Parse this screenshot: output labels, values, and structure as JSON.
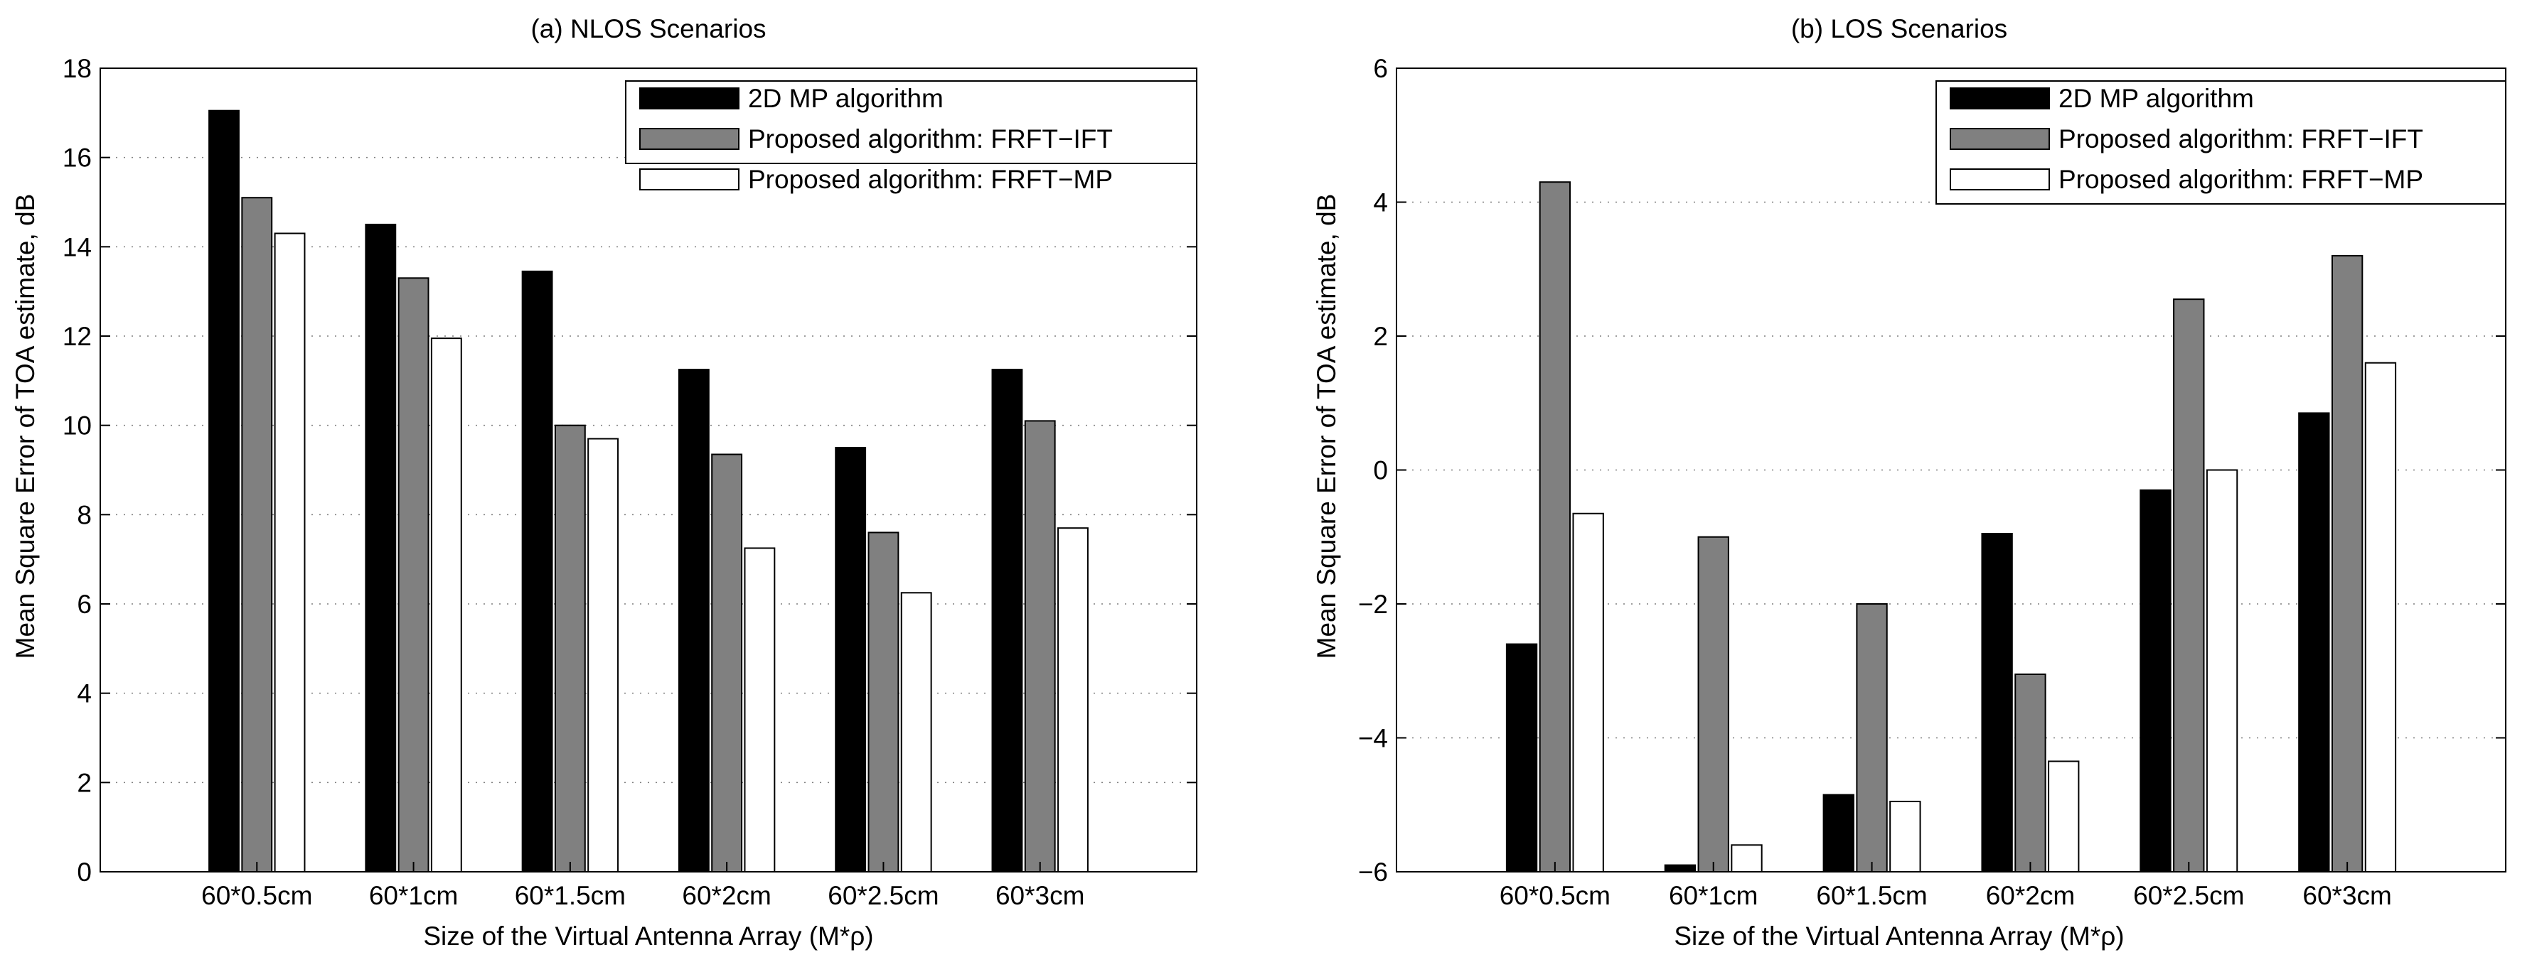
{
  "figure": {
    "background": "#ffffff",
    "colors": {
      "2d_mp": "#000000",
      "frft_ift": "#808080",
      "frft_mp": "#ffffff",
      "grid": "#7f7f7f",
      "axis": "#000000"
    }
  },
  "chart_data": [
    {
      "type": "bar",
      "title": "(a) NLOS Scenarios",
      "xlabel": "Size of the Virtual Antenna Array (M*ρ)",
      "ylabel": "Mean Square Error of TOA estimate, dB",
      "categories": [
        "60*0.5cm",
        "60*1cm",
        "60*1.5cm",
        "60*2cm",
        "60*2.5cm",
        "60*3cm"
      ],
      "ylim": [
        0,
        18
      ],
      "yticks": [
        0,
        2,
        4,
        6,
        8,
        10,
        12,
        14,
        16,
        18
      ],
      "grid": "horizontal dotted",
      "legend_position": "top-right",
      "series": [
        {
          "name": "2D MP algorithm",
          "color": "#000000",
          "values": [
            17.05,
            14.5,
            13.45,
            11.25,
            9.5,
            11.25
          ]
        },
        {
          "name": "Proposed algorithm: FRFT−IFT",
          "color": "#808080",
          "values": [
            15.1,
            13.3,
            10.0,
            9.35,
            7.6,
            10.1
          ]
        },
        {
          "name": "Proposed algorithm: FRFT−MP",
          "color": "#ffffff",
          "values": [
            14.3,
            11.95,
            9.7,
            7.25,
            6.25,
            7.7
          ]
        }
      ]
    },
    {
      "type": "bar",
      "title": "(b) LOS Scenarios",
      "xlabel": "Size of the Virtual Antenna Array (M*ρ)",
      "ylabel": "Mean Square Error of TOA estimate, dB",
      "categories": [
        "60*0.5cm",
        "60*1cm",
        "60*1.5cm",
        "60*2cm",
        "60*2.5cm",
        "60*3cm"
      ],
      "ylim": [
        -6,
        6
      ],
      "yticks": [
        -6,
        -4,
        -2,
        0,
        2,
        4,
        6
      ],
      "grid": "horizontal dotted",
      "legend_position": "top-right",
      "series": [
        {
          "name": "2D MP algorithm",
          "color": "#000000",
          "values": [
            -2.6,
            -5.9,
            -4.85,
            -0.95,
            -0.3,
            0.85
          ]
        },
        {
          "name": "Proposed algorithm: FRFT−IFT",
          "color": "#808080",
          "values": [
            4.3,
            -1.0,
            -2.0,
            -3.05,
            2.55,
            3.2
          ]
        },
        {
          "name": "Proposed algorithm: FRFT−MP",
          "color": "#ffffff",
          "values": [
            -0.65,
            -5.6,
            -4.95,
            -4.35,
            0.0,
            1.6
          ]
        }
      ]
    }
  ]
}
